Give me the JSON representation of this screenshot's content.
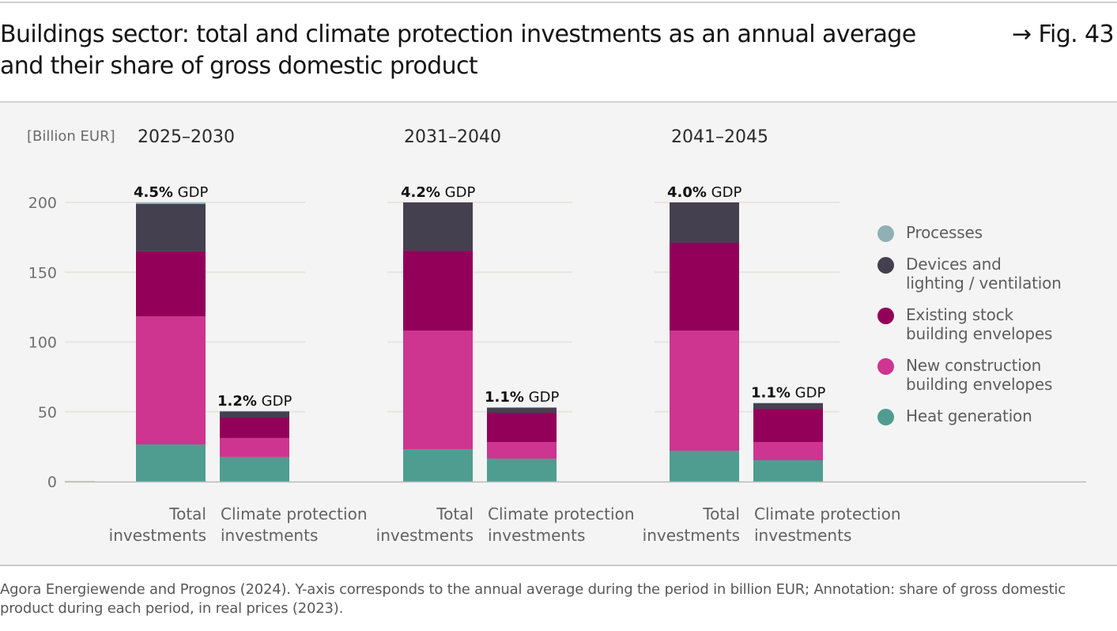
{
  "header": {
    "title": "Buildings sector: total and climate protection investments as an annual average and their share of gross domestic product",
    "figure_ref": "→ Fig. 43"
  },
  "footer": {
    "note": "Agora Energiewende and Prognos (2024). Y-axis corresponds to the annual average during the period in billion EUR; Annotation: share of gross domestic product during each period, in real prices (2023)."
  },
  "legend": [
    {
      "label": "Processes",
      "color": "#8fb0b4"
    },
    {
      "label": "Devices and\nlighting / ventilation",
      "color": "#45404f"
    },
    {
      "label": "Existing stock\nbuilding envelopes",
      "color": "#93005a"
    },
    {
      "label": "New construction\nbuilding envelopes",
      "color": "#cd3590"
    },
    {
      "label": "Heat generation",
      "color": "#4e9d90"
    }
  ],
  "chart_data": {
    "type": "bar",
    "stacked": true,
    "title": "Buildings sector: total and climate protection investments as an annual average and their share of gross domestic product",
    "ylabel": "[Billion EUR]",
    "xlabel": "",
    "ylim": [
      0,
      200
    ],
    "yticks": [
      0,
      50,
      100,
      150,
      200
    ],
    "grid": true,
    "legend_position": "right",
    "groups": [
      "2025–2030",
      "2031–2040",
      "2041–2045"
    ],
    "bar_labels": [
      "Total investments",
      "Climate protection investments"
    ],
    "categories": [
      "2025–2030 Total investments",
      "2025–2030 Climate protection investments",
      "2031–2040 Total investments",
      "2031–2040 Climate protection investments",
      "2041–2045 Total investments",
      "2041–2045 Climate protection investments"
    ],
    "annotations": [
      {
        "bold": "4.5%",
        "text": " GDP"
      },
      {
        "bold": "1.2%",
        "text": " GDP"
      },
      {
        "bold": "4.2%",
        "text": " GDP"
      },
      {
        "bold": "1.1%",
        "text": " GDP"
      },
      {
        "bold": "4.0%",
        "text": " GDP"
      },
      {
        "bold": "1.1%",
        "text": " GDP"
      }
    ],
    "series": [
      {
        "name": "Heat generation",
        "color": "#4e9d90",
        "values": [
          26.6,
          17.6,
          23.2,
          16.4,
          22.1,
          15.3
        ]
      },
      {
        "name": "New construction building envelopes",
        "color": "#cd3590",
        "values": [
          91.8,
          13.6,
          85.0,
          11.9,
          86.1,
          13.0
        ]
      },
      {
        "name": "Existing stock building envelopes",
        "color": "#93005a",
        "values": [
          46.5,
          14.7,
          57.2,
          21.0,
          62.9,
          23.8
        ]
      },
      {
        "name": "Devices and lighting / ventilation",
        "color": "#45404f",
        "values": [
          34.0,
          4.5,
          34.6,
          3.7,
          28.9,
          4.0
        ]
      },
      {
        "name": "Processes",
        "color": "#8fb0b4",
        "values": [
          1.1,
          0.1,
          0.0,
          0.2,
          0.0,
          0.3
        ]
      }
    ]
  }
}
